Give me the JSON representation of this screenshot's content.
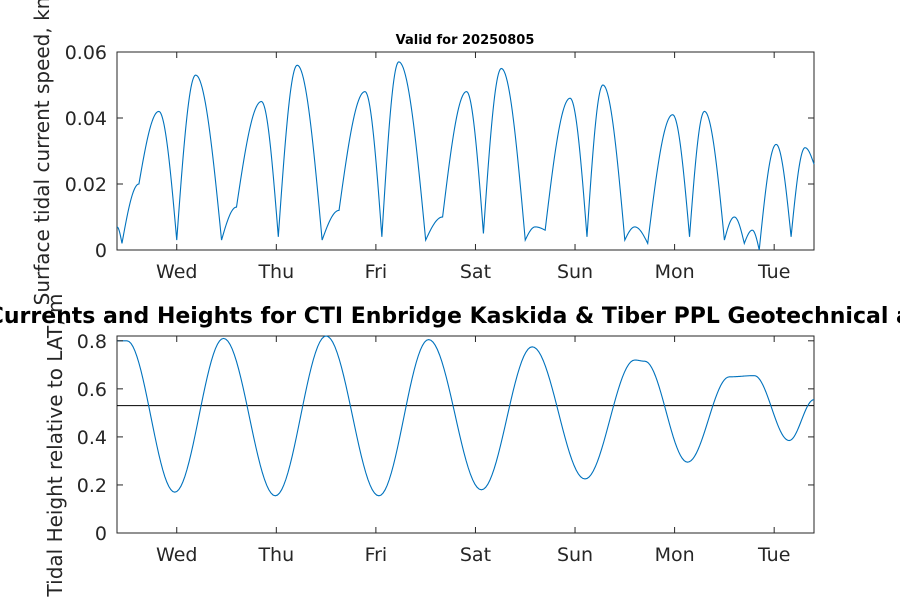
{
  "chart_data": [
    {
      "type": "line",
      "title": "Valid for 20250805",
      "ylabel": "Surface tidal current speed, kn",
      "xlabel": "",
      "x_ticks": [
        "Wed",
        "Thu",
        "Fri",
        "Sat",
        "Sun",
        "Mon",
        "Tue"
      ],
      "y_ticks": [
        "0",
        "0.02",
        "0.04",
        "0.06"
      ],
      "xlim_days": [
        -0.6,
        6.4
      ],
      "ylim": [
        0,
        0.06
      ],
      "grid": false,
      "series_color": "#0072bd",
      "peaks": [
        {
          "t": -0.6,
          "v": 0.007
        },
        {
          "t": -0.55,
          "v": 0.002
        },
        {
          "t": -0.38,
          "v": 0.02
        },
        {
          "t": -0.18,
          "v": 0.042
        },
        {
          "t": 0.0,
          "v": 0.003
        },
        {
          "t": 0.19,
          "v": 0.053
        },
        {
          "t": 0.45,
          "v": 0.003
        },
        {
          "t": 0.6,
          "v": 0.013
        },
        {
          "t": 0.85,
          "v": 0.045
        },
        {
          "t": 1.02,
          "v": 0.004
        },
        {
          "t": 1.21,
          "v": 0.056
        },
        {
          "t": 1.46,
          "v": 0.003
        },
        {
          "t": 1.63,
          "v": 0.012
        },
        {
          "t": 1.89,
          "v": 0.048
        },
        {
          "t": 2.06,
          "v": 0.004
        },
        {
          "t": 2.23,
          "v": 0.057
        },
        {
          "t": 2.5,
          "v": 0.003
        },
        {
          "t": 2.67,
          "v": 0.01
        },
        {
          "t": 2.91,
          "v": 0.048
        },
        {
          "t": 3.08,
          "v": 0.005
        },
        {
          "t": 3.26,
          "v": 0.055
        },
        {
          "t": 3.5,
          "v": 0.003
        },
        {
          "t": 3.6,
          "v": 0.007
        },
        {
          "t": 3.7,
          "v": 0.006
        },
        {
          "t": 3.95,
          "v": 0.046
        },
        {
          "t": 4.12,
          "v": 0.004
        },
        {
          "t": 4.28,
          "v": 0.05
        },
        {
          "t": 4.5,
          "v": 0.003
        },
        {
          "t": 4.6,
          "v": 0.007
        },
        {
          "t": 4.73,
          "v": 0.002
        },
        {
          "t": 4.98,
          "v": 0.041
        },
        {
          "t": 5.15,
          "v": 0.004
        },
        {
          "t": 5.3,
          "v": 0.042
        },
        {
          "t": 5.5,
          "v": 0.003
        },
        {
          "t": 5.6,
          "v": 0.01
        },
        {
          "t": 5.7,
          "v": 0.002
        },
        {
          "t": 5.78,
          "v": 0.006
        },
        {
          "t": 5.85,
          "v": 0.0
        },
        {
          "t": 6.02,
          "v": 0.032
        },
        {
          "t": 6.17,
          "v": 0.004
        },
        {
          "t": 6.31,
          "v": 0.031
        },
        {
          "t": 6.4,
          "v": 0.026
        }
      ]
    },
    {
      "type": "line",
      "title": "Currents and Heights for CTI Enbridge  Kaskida & Tiber PPL Geotechnical and",
      "ylabel": "Tidal Height relative to LAT, m",
      "xlabel": "",
      "x_ticks": [
        "Wed",
        "Thu",
        "Fri",
        "Sat",
        "Sun",
        "Mon",
        "Tue"
      ],
      "y_ticks": [
        "0",
        "0.2",
        "0.4",
        "0.6",
        "0.8"
      ],
      "xlim_days": [
        -0.6,
        6.4
      ],
      "ylim": [
        0,
        0.82
      ],
      "grid": false,
      "reference_level": 0.53,
      "series_color": "#0072bd",
      "extrema": [
        {
          "t": -0.6,
          "v": 0.8
        },
        {
          "t": -0.5,
          "v": 0.8
        },
        {
          "t": -0.02,
          "v": 0.17
        },
        {
          "t": 0.47,
          "v": 0.81
        },
        {
          "t": 0.99,
          "v": 0.155
        },
        {
          "t": 1.5,
          "v": 0.82
        },
        {
          "t": 2.03,
          "v": 0.155
        },
        {
          "t": 2.53,
          "v": 0.805
        },
        {
          "t": 3.06,
          "v": 0.18
        },
        {
          "t": 3.57,
          "v": 0.775
        },
        {
          "t": 4.1,
          "v": 0.225
        },
        {
          "t": 4.6,
          "v": 0.72
        },
        {
          "t": 4.7,
          "v": 0.715
        },
        {
          "t": 5.13,
          "v": 0.295
        },
        {
          "t": 5.55,
          "v": 0.65
        },
        {
          "t": 5.8,
          "v": 0.655
        },
        {
          "t": 6.15,
          "v": 0.385
        },
        {
          "t": 6.4,
          "v": 0.555
        }
      ]
    }
  ]
}
